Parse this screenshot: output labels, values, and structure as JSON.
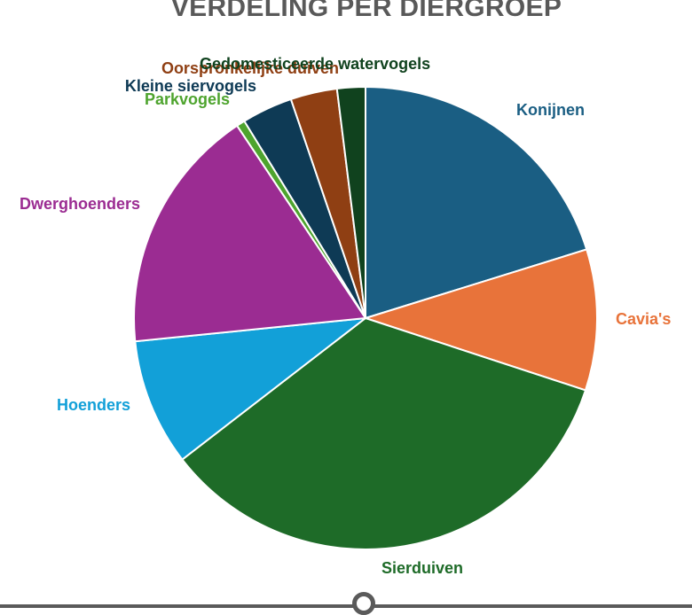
{
  "chart_data": {
    "type": "pie",
    "title": "VERDELING PER DIERGROEP",
    "start_angle_deg": 0,
    "direction": "clockwise",
    "slices": [
      {
        "label": "Konijnen",
        "value": 20.5,
        "color": "#1a5e83"
      },
      {
        "label": "Cavia's",
        "value": 10.0,
        "color": "#e8733a"
      },
      {
        "label": "Sierduiven",
        "value": 35.0,
        "color": "#1e6b28"
      },
      {
        "label": "Hoenders",
        "value": 9.0,
        "color": "#12a0d8"
      },
      {
        "label": "Dwerghoenders",
        "value": 17.5,
        "color": "#9b2c92"
      },
      {
        "label": "Parkvogels",
        "value": 0.6,
        "color": "#4ea42e"
      },
      {
        "label": "Kleine siervogels",
        "value": 3.6,
        "color": "#0e3a55"
      },
      {
        "label": "Oorspronkelijke duiven",
        "value": 3.3,
        "color": "#8f3f13"
      },
      {
        "label": "Gedomesticeerde watervogels",
        "value": 2.0,
        "color": "#10421e"
      }
    ]
  }
}
